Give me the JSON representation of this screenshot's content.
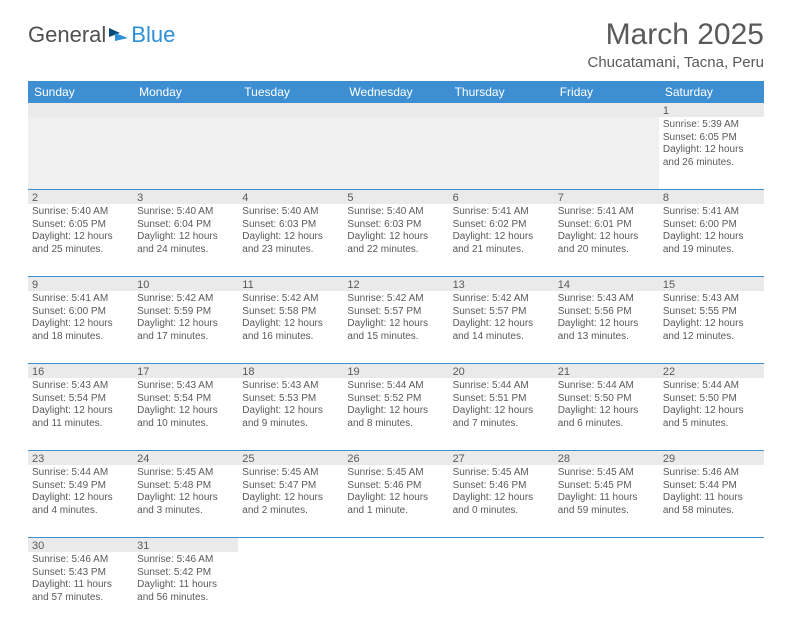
{
  "logo": {
    "text1": "General",
    "text2": "Blue"
  },
  "title": "March 2025",
  "location": "Chucatamani, Tacna, Peru",
  "day_names": [
    "Sunday",
    "Monday",
    "Tuesday",
    "Wednesday",
    "Thursday",
    "Friday",
    "Saturday"
  ],
  "colors": {
    "header_bg": "#3d8fd1",
    "header_text": "#ffffff",
    "text": "#5a5a5a",
    "empty_bg": "#f0f0f0",
    "numrow_bg": "#eaeaea",
    "rule": "#3d8fd1"
  },
  "weeks": [
    [
      {
        "empty": true
      },
      {
        "empty": true
      },
      {
        "empty": true
      },
      {
        "empty": true
      },
      {
        "empty": true
      },
      {
        "empty": true
      },
      {
        "n": "1",
        "sr": "Sunrise: 5:39 AM",
        "ss": "Sunset: 6:05 PM",
        "d1": "Daylight: 12 hours",
        "d2": "and 26 minutes."
      }
    ],
    [
      {
        "n": "2",
        "sr": "Sunrise: 5:40 AM",
        "ss": "Sunset: 6:05 PM",
        "d1": "Daylight: 12 hours",
        "d2": "and 25 minutes."
      },
      {
        "n": "3",
        "sr": "Sunrise: 5:40 AM",
        "ss": "Sunset: 6:04 PM",
        "d1": "Daylight: 12 hours",
        "d2": "and 24 minutes."
      },
      {
        "n": "4",
        "sr": "Sunrise: 5:40 AM",
        "ss": "Sunset: 6:03 PM",
        "d1": "Daylight: 12 hours",
        "d2": "and 23 minutes."
      },
      {
        "n": "5",
        "sr": "Sunrise: 5:40 AM",
        "ss": "Sunset: 6:03 PM",
        "d1": "Daylight: 12 hours",
        "d2": "and 22 minutes."
      },
      {
        "n": "6",
        "sr": "Sunrise: 5:41 AM",
        "ss": "Sunset: 6:02 PM",
        "d1": "Daylight: 12 hours",
        "d2": "and 21 minutes."
      },
      {
        "n": "7",
        "sr": "Sunrise: 5:41 AM",
        "ss": "Sunset: 6:01 PM",
        "d1": "Daylight: 12 hours",
        "d2": "and 20 minutes."
      },
      {
        "n": "8",
        "sr": "Sunrise: 5:41 AM",
        "ss": "Sunset: 6:00 PM",
        "d1": "Daylight: 12 hours",
        "d2": "and 19 minutes."
      }
    ],
    [
      {
        "n": "9",
        "sr": "Sunrise: 5:41 AM",
        "ss": "Sunset: 6:00 PM",
        "d1": "Daylight: 12 hours",
        "d2": "and 18 minutes."
      },
      {
        "n": "10",
        "sr": "Sunrise: 5:42 AM",
        "ss": "Sunset: 5:59 PM",
        "d1": "Daylight: 12 hours",
        "d2": "and 17 minutes."
      },
      {
        "n": "11",
        "sr": "Sunrise: 5:42 AM",
        "ss": "Sunset: 5:58 PM",
        "d1": "Daylight: 12 hours",
        "d2": "and 16 minutes."
      },
      {
        "n": "12",
        "sr": "Sunrise: 5:42 AM",
        "ss": "Sunset: 5:57 PM",
        "d1": "Daylight: 12 hours",
        "d2": "and 15 minutes."
      },
      {
        "n": "13",
        "sr": "Sunrise: 5:42 AM",
        "ss": "Sunset: 5:57 PM",
        "d1": "Daylight: 12 hours",
        "d2": "and 14 minutes."
      },
      {
        "n": "14",
        "sr": "Sunrise: 5:43 AM",
        "ss": "Sunset: 5:56 PM",
        "d1": "Daylight: 12 hours",
        "d2": "and 13 minutes."
      },
      {
        "n": "15",
        "sr": "Sunrise: 5:43 AM",
        "ss": "Sunset: 5:55 PM",
        "d1": "Daylight: 12 hours",
        "d2": "and 12 minutes."
      }
    ],
    [
      {
        "n": "16",
        "sr": "Sunrise: 5:43 AM",
        "ss": "Sunset: 5:54 PM",
        "d1": "Daylight: 12 hours",
        "d2": "and 11 minutes."
      },
      {
        "n": "17",
        "sr": "Sunrise: 5:43 AM",
        "ss": "Sunset: 5:54 PM",
        "d1": "Daylight: 12 hours",
        "d2": "and 10 minutes."
      },
      {
        "n": "18",
        "sr": "Sunrise: 5:43 AM",
        "ss": "Sunset: 5:53 PM",
        "d1": "Daylight: 12 hours",
        "d2": "and 9 minutes."
      },
      {
        "n": "19",
        "sr": "Sunrise: 5:44 AM",
        "ss": "Sunset: 5:52 PM",
        "d1": "Daylight: 12 hours",
        "d2": "and 8 minutes."
      },
      {
        "n": "20",
        "sr": "Sunrise: 5:44 AM",
        "ss": "Sunset: 5:51 PM",
        "d1": "Daylight: 12 hours",
        "d2": "and 7 minutes."
      },
      {
        "n": "21",
        "sr": "Sunrise: 5:44 AM",
        "ss": "Sunset: 5:50 PM",
        "d1": "Daylight: 12 hours",
        "d2": "and 6 minutes."
      },
      {
        "n": "22",
        "sr": "Sunrise: 5:44 AM",
        "ss": "Sunset: 5:50 PM",
        "d1": "Daylight: 12 hours",
        "d2": "and 5 minutes."
      }
    ],
    [
      {
        "n": "23",
        "sr": "Sunrise: 5:44 AM",
        "ss": "Sunset: 5:49 PM",
        "d1": "Daylight: 12 hours",
        "d2": "and 4 minutes."
      },
      {
        "n": "24",
        "sr": "Sunrise: 5:45 AM",
        "ss": "Sunset: 5:48 PM",
        "d1": "Daylight: 12 hours",
        "d2": "and 3 minutes."
      },
      {
        "n": "25",
        "sr": "Sunrise: 5:45 AM",
        "ss": "Sunset: 5:47 PM",
        "d1": "Daylight: 12 hours",
        "d2": "and 2 minutes."
      },
      {
        "n": "26",
        "sr": "Sunrise: 5:45 AM",
        "ss": "Sunset: 5:46 PM",
        "d1": "Daylight: 12 hours",
        "d2": "and 1 minute."
      },
      {
        "n": "27",
        "sr": "Sunrise: 5:45 AM",
        "ss": "Sunset: 5:46 PM",
        "d1": "Daylight: 12 hours",
        "d2": "and 0 minutes."
      },
      {
        "n": "28",
        "sr": "Sunrise: 5:45 AM",
        "ss": "Sunset: 5:45 PM",
        "d1": "Daylight: 11 hours",
        "d2": "and 59 minutes."
      },
      {
        "n": "29",
        "sr": "Sunrise: 5:46 AM",
        "ss": "Sunset: 5:44 PM",
        "d1": "Daylight: 11 hours",
        "d2": "and 58 minutes."
      }
    ],
    [
      {
        "n": "30",
        "sr": "Sunrise: 5:46 AM",
        "ss": "Sunset: 5:43 PM",
        "d1": "Daylight: 11 hours",
        "d2": "and 57 minutes."
      },
      {
        "n": "31",
        "sr": "Sunrise: 5:46 AM",
        "ss": "Sunset: 5:42 PM",
        "d1": "Daylight: 11 hours",
        "d2": "and 56 minutes."
      },
      {
        "empty": true,
        "blank": true
      },
      {
        "empty": true,
        "blank": true
      },
      {
        "empty": true,
        "blank": true
      },
      {
        "empty": true,
        "blank": true
      },
      {
        "empty": true,
        "blank": true
      }
    ]
  ]
}
